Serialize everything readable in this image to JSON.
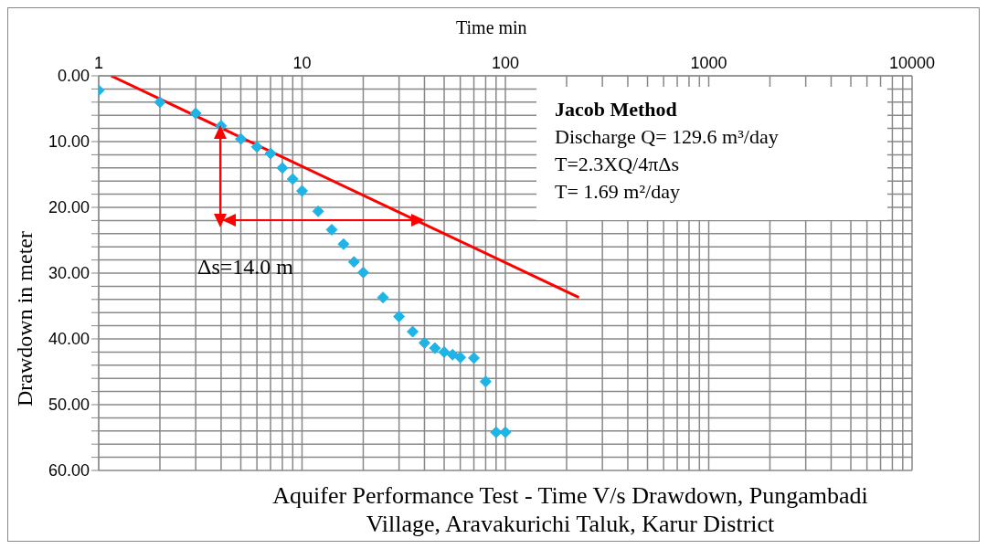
{
  "chart_data": {
    "type": "scatter",
    "title": "Aquifer Performance Test - Time V/s Drawdown, Pungambadi Village, Aravakurichi Taluk, Karur District",
    "xlabel": "Time min",
    "ylabel": "Drawdown in meter",
    "annotations": [
      "Jacob Method",
      "Discharge Q= 129.6 m³/day",
      "T=2.3XQ/4πΔs",
      "T= 1.69 m²/day",
      "Δs=14.0 m"
    ],
    "log": "x",
    "grid": true,
    "marker": "diamond",
    "xlim": [
      1,
      10000
    ],
    "xticks": [
      1,
      {
        "value": 2,
        "label": null
      },
      {
        "value": 3,
        "label": null
      },
      {
        "value": 4,
        "label": null
      },
      {
        "value": 5,
        "label": null
      },
      {
        "value": 6,
        "label": null
      },
      {
        "value": 7,
        "label": null
      },
      {
        "value": 8,
        "label": null
      },
      {
        "value": 9,
        "label": null
      },
      10,
      {
        "value": 20,
        "label": null
      },
      {
        "value": 30,
        "label": null
      },
      {
        "value": 40,
        "label": null
      },
      {
        "value": 50,
        "label": null
      },
      {
        "value": 60,
        "label": null
      },
      {
        "value": 70,
        "label": null
      },
      {
        "value": 80,
        "label": null
      },
      {
        "value": 90,
        "label": null
      },
      100,
      {
        "value": 200,
        "label": null
      },
      {
        "value": 300,
        "label": null
      },
      {
        "value": 400,
        "label": null
      },
      {
        "value": 500,
        "label": null
      },
      {
        "value": 600,
        "label": null
      },
      {
        "value": 700,
        "label": null
      },
      {
        "value": 800,
        "label": null
      },
      {
        "value": 900,
        "label": null
      },
      1000,
      {
        "value": 2000,
        "label": null
      },
      {
        "value": 3000,
        "label": null
      },
      {
        "value": 4000,
        "label": null
      },
      {
        "value": 5000,
        "label": null
      },
      {
        "value": 6000,
        "label": null
      },
      {
        "value": 7000,
        "label": null
      },
      {
        "value": 8000,
        "label": null
      },
      {
        "value": 9000,
        "label": null
      },
      10000
    ],
    "ylim": [
      60,
      0
    ],
    "yticks": [
      {
        "value": 0,
        "label": "0.00"
      },
      {
        "value": 2,
        "label": null
      },
      {
        "value": 4,
        "label": null
      },
      {
        "value": 6,
        "label": null
      },
      {
        "value": 8,
        "label": null
      },
      {
        "value": 10,
        "label": "10.00"
      },
      {
        "value": 12,
        "label": null
      },
      {
        "value": 14,
        "label": null
      },
      {
        "value": 16,
        "label": null
      },
      {
        "value": 18,
        "label": null
      },
      {
        "value": 20,
        "label": "20.00"
      },
      {
        "value": 22,
        "label": null
      },
      {
        "value": 24,
        "label": null
      },
      {
        "value": 26,
        "label": null
      },
      {
        "value": 28,
        "label": null
      },
      {
        "value": 30,
        "label": "30.00"
      },
      {
        "value": 32,
        "label": null
      },
      {
        "value": 34,
        "label": null
      },
      {
        "value": 36,
        "label": null
      },
      {
        "value": 38,
        "label": null
      },
      {
        "value": 40,
        "label": "40.00"
      },
      {
        "value": 42,
        "label": null
      },
      {
        "value": 44,
        "label": null
      },
      {
        "value": 46,
        "label": null
      },
      {
        "value": 48,
        "label": null
      },
      {
        "value": 50,
        "label": "50.00"
      },
      {
        "value": 52,
        "label": null
      },
      {
        "value": 54,
        "label": null
      },
      {
        "value": 56,
        "label": null
      },
      {
        "value": 58,
        "label": null
      },
      {
        "value": 60,
        "label": "60.00"
      }
    ],
    "series": [
      {
        "color": "#1fb4e6",
        "x": [
          1,
          2,
          3,
          4,
          5,
          6,
          7,
          8,
          9,
          10,
          12,
          14,
          16,
          18,
          20,
          25,
          30,
          35,
          40,
          45,
          50,
          55,
          60,
          70,
          80,
          90,
          100
        ],
        "values": [
          2.2,
          4.0,
          5.7,
          7.6,
          9.6,
          10.8,
          11.8,
          14.0,
          15.7,
          17.5,
          20.6,
          23.4,
          25.6,
          28.3,
          29.9,
          33.7,
          36.6,
          38.9,
          40.6,
          41.4,
          42.0,
          42.4,
          42.8,
          42.9,
          46.5,
          54.2,
          54.2
        ]
      },
      {
        "type": "line",
        "color": "#ff0000",
        "x": [
          1.15,
          230
        ],
        "values": [
          0,
          33.7
        ],
        "marker": "none",
        "line_style": "solid"
      }
    ]
  }
}
